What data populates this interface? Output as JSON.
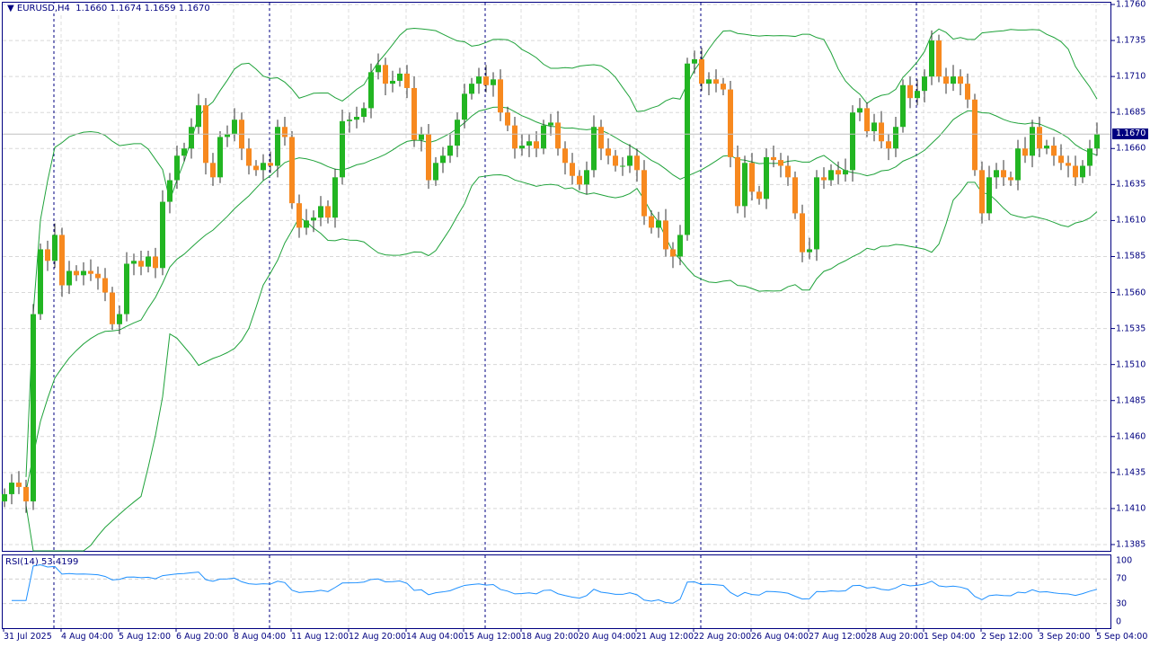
{
  "header": {
    "symbol_tf": "EURUSD,H4",
    "ohlc": "1.1660 1.1674 1.1659 1.1670"
  },
  "rsi": {
    "label": "RSI(14) 53.4199",
    "period": 14,
    "levels": [
      "100",
      "70",
      "30",
      "0"
    ]
  },
  "price_axis": [
    "1.1760",
    "1.1735",
    "1.1710",
    "1.1685",
    "1.1660",
    "1.1635",
    "1.1610",
    "1.1585",
    "1.1560",
    "1.1535",
    "1.1510",
    "1.1485",
    "1.1460",
    "1.1435",
    "1.1410",
    "1.1385"
  ],
  "current_price": "1.1670",
  "time_axis": [
    "31 Jul 2025",
    "4 Aug 04:00",
    "5 Aug 12:00",
    "6 Aug 20:00",
    "8 Aug 04:00",
    "11 Aug 12:00",
    "12 Aug 20:00",
    "14 Aug 04:00",
    "15 Aug 12:00",
    "18 Aug 20:00",
    "20 Aug 04:00",
    "21 Aug 12:00",
    "22 Aug 20:00",
    "26 Aug 04:00",
    "27 Aug 12:00",
    "28 Aug 20:00",
    "1 Sep 04:00",
    "2 Sep 12:00",
    "3 Sep 20:00",
    "5 Sep 04:00"
  ],
  "colors": {
    "bull": "#22b522",
    "bear": "#f7891f",
    "band": "#1fa23a",
    "rsi": "#1e90ff",
    "axis": "#000080"
  },
  "chart_data": {
    "type": "candlestick",
    "symbol": "EURUSD",
    "timeframe": "H4",
    "ylim": [
      1.1385,
      1.176
    ],
    "bollinger": {
      "period": 20,
      "deviation": 2
    },
    "closes": [
      1.142,
      1.1428,
      1.1425,
      1.1415,
      1.1545,
      1.159,
      1.1582,
      1.16,
      1.1565,
      1.1575,
      1.1572,
      1.1575,
      1.1573,
      1.157,
      1.156,
      1.1538,
      1.1545,
      1.158,
      1.1582,
      1.1578,
      1.1585,
      1.1577,
      1.1623,
      1.1638,
      1.1655,
      1.166,
      1.1675,
      1.169,
      1.165,
      1.164,
      1.1668,
      1.167,
      1.168,
      1.166,
      1.1648,
      1.1645,
      1.165,
      1.1648,
      1.1675,
      1.1668,
      1.1622,
      1.1605,
      1.161,
      1.1612,
      1.162,
      1.1612,
      1.164,
      1.1679,
      1.168,
      1.1682,
      1.1688,
      1.1713,
      1.1718,
      1.1705,
      1.1707,
      1.1712,
      1.1702,
      1.1666,
      1.167,
      1.1638,
      1.165,
      1.1655,
      1.1662,
      1.168,
      1.1698,
      1.1705,
      1.171,
      1.1704,
      1.1708,
      1.1685,
      1.1676,
      1.166,
      1.1662,
      1.1665,
      1.166,
      1.1676,
      1.1678,
      1.166,
      1.165,
      1.1641,
      1.1635,
      1.1645,
      1.1675,
      1.166,
      1.1655,
      1.1648,
      1.1648,
      1.1655,
      1.1645,
      1.1613,
      1.1605,
      1.161,
      1.159,
      1.1585,
      1.16,
      1.1719,
      1.1722,
      1.1705,
      1.1708,
      1.1705,
      1.1701,
      1.1654,
      1.162,
      1.165,
      1.163,
      1.1625,
      1.1654,
      1.1652,
      1.1648,
      1.164,
      1.1615,
      1.1588,
      1.159,
      1.164,
      1.1638,
      1.1645,
      1.1642,
      1.1645,
      1.1685,
      1.1688,
      1.1672,
      1.1678,
      1.1665,
      1.166,
      1.1675,
      1.1704,
      1.1695,
      1.17,
      1.171,
      1.1735,
      1.171,
      1.1705,
      1.171,
      1.1705,
      1.1694,
      1.1645,
      1.1615,
      1.164,
      1.1645,
      1.164,
      1.1638,
      1.166,
      1.1655,
      1.1675,
      1.166,
      1.1662,
      1.1655,
      1.165,
      1.1648,
      1.164,
      1.1648,
      1.166,
      1.167
    ]
  }
}
